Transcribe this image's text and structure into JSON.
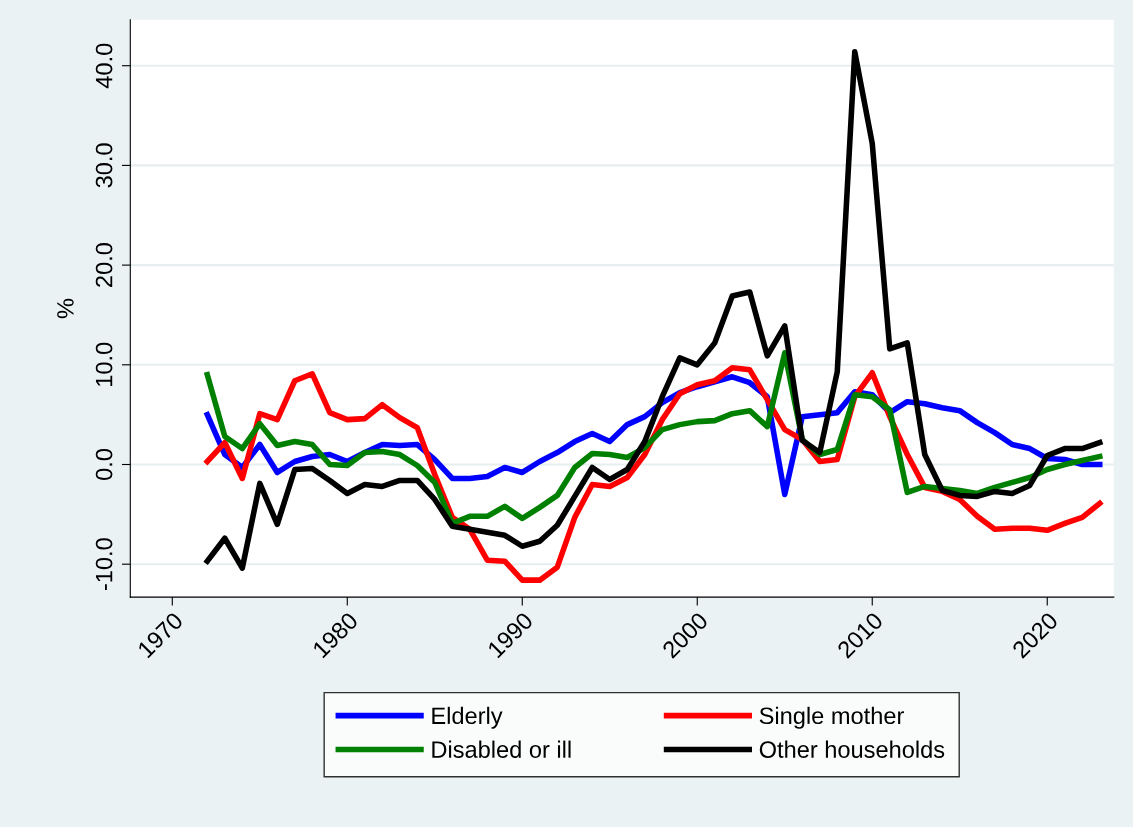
{
  "chart_data": {
    "type": "line",
    "ylabel": "%",
    "x": [
      1972,
      1973,
      1974,
      1975,
      1976,
      1977,
      1978,
      1979,
      1980,
      1981,
      1982,
      1983,
      1984,
      1985,
      1986,
      1987,
      1988,
      1989,
      1990,
      1991,
      1992,
      1993,
      1994,
      1995,
      1996,
      1997,
      1998,
      1999,
      2000,
      2001,
      2002,
      2003,
      2004,
      2005,
      2006,
      2007,
      2008,
      2009,
      2010,
      2011,
      2012,
      2013,
      2014,
      2015,
      2016,
      2017,
      2018,
      2019,
      2020,
      2021,
      2022,
      2023
    ],
    "series": [
      {
        "name": "Elderly",
        "color": "#0000ff",
        "values": [
          5.0,
          1.0,
          -0.3,
          2.0,
          -0.8,
          0.3,
          0.8,
          1.0,
          0.3,
          1.2,
          2.0,
          1.9,
          2.0,
          0.5,
          -1.4,
          -1.4,
          -1.2,
          -0.3,
          -0.8,
          0.3,
          1.2,
          2.3,
          3.1,
          2.3,
          4.0,
          4.8,
          6.2,
          7.2,
          7.8,
          8.3,
          8.8,
          8.2,
          6.8,
          -3.0,
          4.8,
          5.0,
          5.2,
          7.3,
          7.0,
          5.2,
          6.3,
          6.1,
          5.7,
          5.4,
          4.2,
          3.2,
          2.0,
          1.6,
          0.6,
          0.5,
          0.0,
          0.0
        ]
      },
      {
        "name": "Single mother",
        "color": "#ff0000",
        "values": [
          0.3,
          2.2,
          -1.4,
          5.1,
          4.5,
          8.4,
          9.1,
          5.2,
          4.5,
          4.6,
          6.0,
          4.7,
          3.7,
          -1.0,
          -5.3,
          -6.5,
          -9.6,
          -9.7,
          -11.6,
          -11.6,
          -10.3,
          -5.3,
          -2.0,
          -2.2,
          -1.3,
          1.0,
          4.5,
          7.1,
          8.0,
          8.4,
          9.7,
          9.5,
          6.5,
          3.5,
          2.5,
          0.3,
          0.5,
          6.8,
          9.2,
          4.8,
          1.0,
          -2.3,
          -2.7,
          -3.5,
          -5.2,
          -6.5,
          -6.4,
          -6.4,
          -6.6,
          -5.9,
          -5.3,
          -3.9
        ]
      },
      {
        "name": "Disabled or ill",
        "color": "#008000",
        "values": [
          9.0,
          2.8,
          1.6,
          4.1,
          1.9,
          2.3,
          2.0,
          0.0,
          -0.1,
          1.2,
          1.3,
          1.0,
          -0.1,
          -1.8,
          -5.9,
          -5.2,
          -5.2,
          -4.2,
          -5.4,
          -4.3,
          -3.1,
          -0.3,
          1.1,
          1.0,
          0.7,
          1.7,
          3.5,
          4.0,
          4.3,
          4.4,
          5.1,
          5.4,
          3.8,
          11.2,
          2.5,
          1.0,
          1.5,
          7.0,
          6.8,
          5.5,
          -2.8,
          -2.2,
          -2.4,
          -2.6,
          -2.9,
          -2.3,
          -1.8,
          -1.3,
          -0.5,
          0.0,
          0.4,
          0.8
        ]
      },
      {
        "name": "Other households",
        "color": "#000000",
        "values": [
          -9.7,
          -7.4,
          -10.4,
          -1.9,
          -6.0,
          -0.5,
          -0.4,
          -1.6,
          -2.9,
          -2.0,
          -2.2,
          -1.6,
          -1.6,
          -3.5,
          -6.2,
          -6.5,
          -6.8,
          -7.1,
          -8.2,
          -7.7,
          -6.1,
          -3.2,
          -0.3,
          -1.5,
          -0.5,
          2.3,
          6.8,
          10.7,
          10.0,
          12.2,
          16.9,
          17.3,
          10.9,
          13.9,
          2.4,
          1.2,
          9.3,
          41.4,
          32.2,
          11.6,
          12.2,
          1.0,
          -2.6,
          -3.1,
          -3.2,
          -2.7,
          -2.9,
          -2.1,
          0.9,
          1.6,
          1.6,
          2.2
        ]
      }
    ],
    "xlim": [
      1967.6,
      2023.8
    ],
    "xticks": [
      1970,
      1980,
      1990,
      2000,
      2010,
      2020
    ],
    "ylim": [
      -13.3,
      44.6
    ],
    "yticks": [
      {
        "value": -10,
        "label": "-10.0"
      },
      {
        "value": 0,
        "label": "0.0"
      },
      {
        "value": 10,
        "label": "10.0"
      },
      {
        "value": 20,
        "label": "20.0"
      },
      {
        "value": 30,
        "label": "30.0"
      },
      {
        "value": 40,
        "label": "40.0"
      }
    ],
    "grid": "y",
    "legend": "bottom",
    "line_style": "solid",
    "marker": "none"
  }
}
